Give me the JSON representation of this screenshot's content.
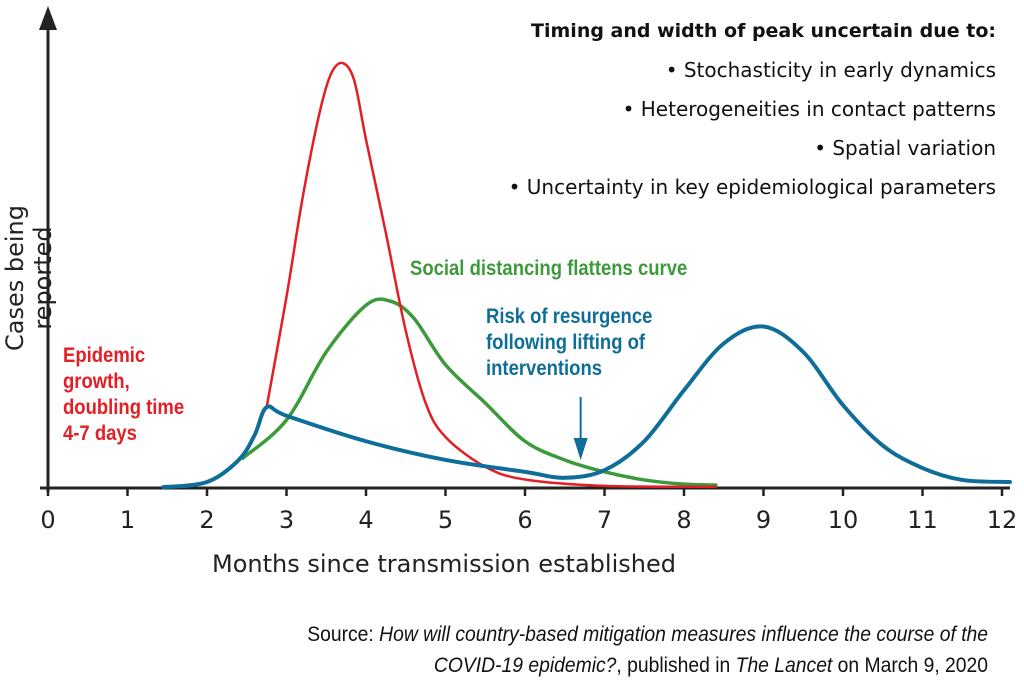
{
  "chart_data": {
    "type": "line",
    "title": "",
    "xlabel": "Months since transmission established",
    "ylabel": "Cases being reported",
    "xlim": [
      0,
      12
    ],
    "ylim": [
      0,
      100
    ],
    "x_ticks": [
      "0",
      "1",
      "2",
      "3",
      "4",
      "5",
      "6",
      "7",
      "8",
      "9",
      "10",
      "11",
      "12"
    ],
    "grid": false,
    "series": [
      {
        "name": "Epidemic growth (unmitigated)",
        "color": "#e31e24",
        "x": [
          2.75,
          3.0,
          3.2,
          3.4,
          3.55,
          3.7,
          3.85,
          4.0,
          4.25,
          4.5,
          4.75,
          5.0,
          5.5,
          6.0,
          7.0,
          8.4
        ],
        "y": [
          19,
          45,
          68,
          87,
          97,
          100,
          96,
          82,
          60,
          37,
          20,
          12,
          5,
          2,
          0.5,
          0.3
        ]
      },
      {
        "name": "Social distancing",
        "color": "#3c9a3c",
        "x": [
          2.45,
          3.0,
          3.5,
          4.0,
          4.3,
          4.6,
          5.0,
          5.5,
          6.0,
          6.5,
          7.0,
          7.5,
          8.0,
          8.4
        ],
        "y": [
          7,
          16,
          32,
          43,
          44,
          40,
          29,
          20,
          11,
          6.6,
          3.8,
          1.9,
          0.9,
          0.7
        ]
      },
      {
        "name": "Resurgence after lifting interventions",
        "color": "#0f6e99",
        "x": [
          1.45,
          2.0,
          2.4,
          2.6,
          2.75,
          3.0,
          4.0,
          5.0,
          6.0,
          6.5,
          7.0,
          7.5,
          8.0,
          8.5,
          9.0,
          9.5,
          10.0,
          10.5,
          11.0,
          11.5,
          12.1
        ],
        "y": [
          0.2,
          1.4,
          6.6,
          12.5,
          19,
          17,
          11,
          6.6,
          3.8,
          2.4,
          4.2,
          11,
          23,
          34,
          38,
          32,
          19.5,
          10,
          4.7,
          1.9,
          1.4
        ]
      }
    ],
    "annotations": {
      "epidemic": [
        "Epidemic",
        "growth,",
        "doubling time",
        "4-7 days"
      ],
      "distancing": "Social distancing flattens curve",
      "resurgence": [
        "Risk of resurgence",
        "following lifting of",
        "interventions"
      ],
      "arrow_x": 6.7
    }
  },
  "notes": {
    "heading": "Timing and width of peak uncertain due to:",
    "items": [
      "• Stochasticity in early dynamics",
      "• Heterogeneities in contact patterns",
      "• Spatial variation",
      "• Uncertainty in key epidemiological parameters"
    ]
  },
  "source": {
    "prefix": "Source: ",
    "title_line1": "How will country-based mitigation measures influence the course of the",
    "title_line2": "COVID-19 epidemic?",
    "mid": ", published in ",
    "journal": "The Lancet",
    "suffix": " on March 9, 2020"
  }
}
